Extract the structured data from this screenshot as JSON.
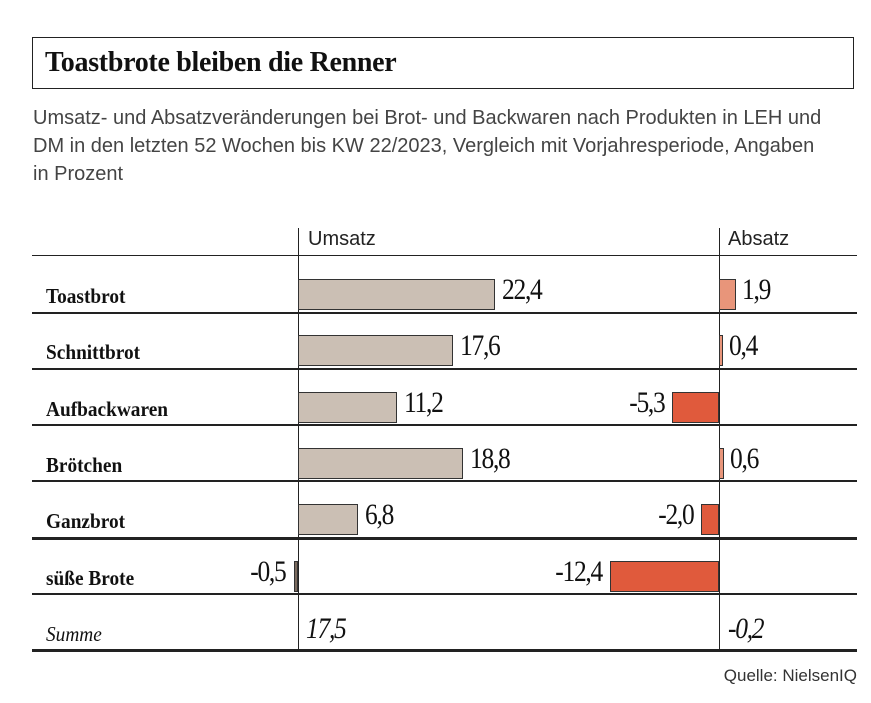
{
  "title": "Toastbrote bleiben die Renner",
  "subtitle": "Umsatz- und Absatzveränderungen bei Brot- und Backwaren nach Produkten in LEH und DM in den letzten 52 Wochen bis KW 22/2023, Vergleich mit Vorjahresperiode, Angaben in Prozent",
  "source": "Quelle: NielsenIQ",
  "chart_data": {
    "type": "bar",
    "columns": [
      "Umsatz",
      "Absatz"
    ],
    "categories": [
      "Toastbrot",
      "Schnittbrot",
      "Aufbackwaren",
      "Brötchen",
      "Ganzbrot",
      "süße Brote"
    ],
    "series": [
      {
        "name": "Umsatz",
        "values": [
          22.4,
          17.6,
          11.2,
          18.8,
          6.8,
          -0.5
        ],
        "labels": [
          "22,4",
          "17,6",
          "11,2",
          "18,8",
          "6,8",
          "-0,5"
        ]
      },
      {
        "name": "Absatz",
        "values": [
          1.9,
          0.4,
          -5.3,
          0.6,
          -2.0,
          -12.4
        ],
        "labels": [
          "1,9",
          "0,4",
          "-5,3",
          "0,6",
          "-2,0",
          "-12,4"
        ]
      }
    ],
    "total": {
      "label": "Summe",
      "umsatz": "17,5",
      "absatz": "-0,2"
    },
    "colors": {
      "umsatz": "#cbbfb4",
      "umsatz_negative": "#7a6a5e",
      "absatz_positive": "#e8957a",
      "absatz_negative": "#e05a3c"
    }
  }
}
